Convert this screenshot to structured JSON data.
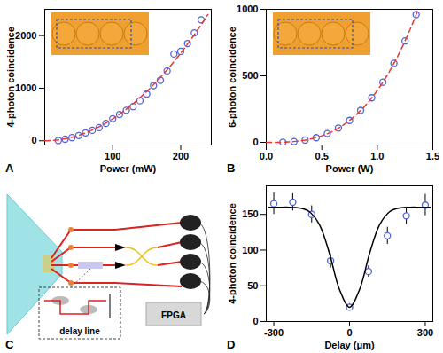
{
  "chart_data": [
    {
      "type": "scatter",
      "title": "A",
      "x_label": "Power (mW)",
      "y_label": "4-photon coincidence",
      "xlim": [
        0,
        245
      ],
      "ylim": [
        -80,
        2500
      ],
      "xticks": [
        100,
        200
      ],
      "yticks": [
        0,
        1000,
        2000
      ],
      "series": [
        {
          "type": "scatter",
          "color": "#4f63d9",
          "marker": "circle",
          "x": [
            20,
            30,
            40,
            50,
            60,
            70,
            80,
            90,
            100,
            110,
            120,
            130,
            140,
            150,
            160,
            170,
            180,
            190,
            200,
            210,
            220,
            230
          ],
          "values": [
            5,
            30,
            60,
            100,
            150,
            200,
            250,
            330,
            420,
            500,
            580,
            650,
            760,
            890,
            1050,
            1150,
            1330,
            1650,
            1700,
            1850,
            2050,
            2300
          ]
        },
        {
          "type": "line",
          "color": "#e53935",
          "line_style": "dashed",
          "x": [
            0,
            20,
            40,
            60,
            80,
            100,
            120,
            140,
            160,
            180,
            200,
            220,
            240
          ],
          "values": [
            0,
            17,
            67,
            150,
            267,
            417,
            600,
            817,
            1067,
            1350,
            1667,
            2017,
            2400
          ]
        }
      ]
    },
    {
      "type": "scatter",
      "title": "B",
      "x_label": "Power (W)",
      "y_label": "6-photon coincidence",
      "xlim": [
        0,
        1.5
      ],
      "ylim": [
        -20,
        1000
      ],
      "xticks": [
        {
          "value": 0,
          "label": "0.0"
        },
        {
          "value": 0.5,
          "label": "0.5"
        },
        {
          "value": 1,
          "label": "1.0"
        },
        {
          "value": 1.5,
          "label": "1.5"
        }
      ],
      "yticks": [
        0,
        500,
        1000
      ],
      "series": [
        {
          "type": "scatter",
          "color": "#4f63d9",
          "marker": "circle",
          "x": [
            0.15,
            0.25,
            0.35,
            0.45,
            0.55,
            0.65,
            0.75,
            0.85,
            0.95,
            1.05,
            1.15,
            1.25,
            1.35
          ],
          "values": [
            1,
            6,
            17,
            35,
            66,
            108,
            165,
            240,
            335,
            452,
            594,
            762,
            960
          ]
        },
        {
          "type": "line",
          "color": "#e53935",
          "line_style": "dashed",
          "x": [
            0,
            0.1,
            0.2,
            0.3,
            0.4,
            0.5,
            0.6,
            0.7,
            0.8,
            0.9,
            1.0,
            1.1,
            1.2,
            1.3,
            1.36
          ],
          "values": [
            0,
            0.4,
            3,
            10.5,
            25,
            49,
            84,
            134,
            200,
            284,
            390,
            519,
            674,
            857,
            981
          ]
        }
      ]
    },
    {
      "type": "diagram",
      "title": "C",
      "labels": [
        "delay line",
        "FPGA"
      ]
    },
    {
      "type": "scatter",
      "title": "D",
      "x_label": "Delay (μm)",
      "y_label": "4-photon coincidence",
      "xlim": [
        -330,
        330
      ],
      "ylim": [
        0,
        190
      ],
      "xticks": [
        -300,
        0,
        300
      ],
      "yticks": [
        0,
        50,
        100,
        150
      ],
      "series": [
        {
          "type": "scatter",
          "color": "#4f63d9",
          "marker": "circle",
          "x": [
            -300,
            -225,
            -150,
            -75,
            0,
            75,
            150,
            225,
            300
          ],
          "values": [
            165,
            167,
            150,
            85,
            20,
            70,
            120,
            148,
            163
          ],
          "errors": [
            15,
            12,
            12,
            10,
            5,
            8,
            12,
            12,
            15
          ]
        },
        {
          "type": "line",
          "color": "#000000",
          "line_style": "solid",
          "x": [
            -320,
            -280,
            -240,
            -200,
            -160,
            -120,
            -80,
            -40,
            0,
            40,
            80,
            120,
            160,
            200,
            240,
            280,
            320
          ],
          "values": [
            160,
            160,
            160,
            159,
            154,
            136,
            96,
            45,
            20,
            45,
            96,
            136,
            154,
            159,
            160,
            160,
            160
          ]
        }
      ]
    }
  ]
}
